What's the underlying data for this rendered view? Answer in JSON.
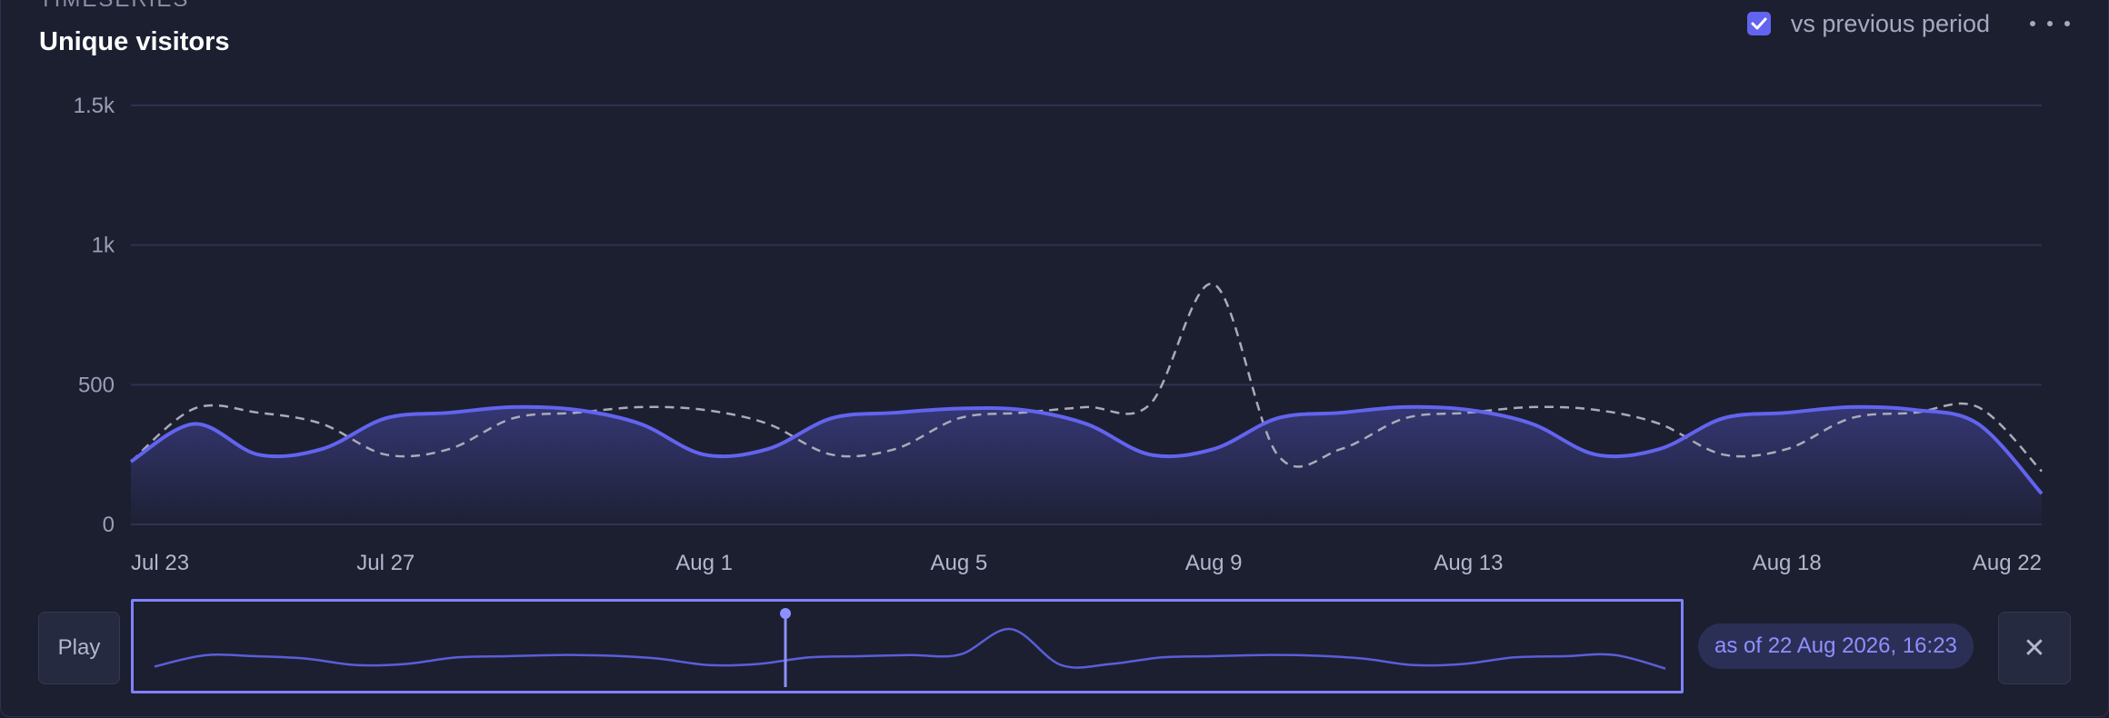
{
  "header": {
    "eyebrow": "TIMESERIES",
    "title": "Unique visitors",
    "compare_label": "vs previous period",
    "compare_checked": true
  },
  "controls": {
    "play_label": "Play",
    "as_of_label": "as of 22 Aug 2026, 16:23",
    "close_label": "✕"
  },
  "colors": {
    "accent": "#6264ef",
    "background": "#1c1f30",
    "previous_period": "#a9abb8",
    "grid": "#2e3250"
  },
  "chart_data": {
    "type": "area",
    "title": "Unique visitors",
    "ylim": [
      0,
      1500
    ],
    "y_ticks": [
      "0",
      "500",
      "1k",
      "1.5k"
    ],
    "y_tick_values": [
      0,
      500,
      1000,
      1500
    ],
    "x_range": [
      "2026-07-23",
      "2026-08-22"
    ],
    "x_ticks": [
      "Jul 23",
      "Jul 27",
      "Aug 1",
      "Aug 5",
      "Aug 9",
      "Aug 13",
      "Aug 18",
      "Aug 22"
    ],
    "x_tick_dates": [
      "2026-07-23",
      "2026-07-27",
      "2026-08-01",
      "2026-08-05",
      "2026-08-09",
      "2026-08-13",
      "2026-08-18",
      "2026-08-22"
    ],
    "grid": true,
    "series": [
      {
        "style": "solid-area",
        "color": "#6264ef",
        "x": [
          "2026-07-23",
          "2026-07-24",
          "2026-07-25",
          "2026-07-26",
          "2026-07-27",
          "2026-07-28",
          "2026-07-29",
          "2026-07-30",
          "2026-07-31",
          "2026-08-01",
          "2026-08-02",
          "2026-08-03",
          "2026-08-04",
          "2026-08-05",
          "2026-08-06",
          "2026-08-07",
          "2026-08-08",
          "2026-08-09",
          "2026-08-10",
          "2026-08-11",
          "2026-08-12",
          "2026-08-13",
          "2026-08-14",
          "2026-08-15",
          "2026-08-16",
          "2026-08-17",
          "2026-08-18",
          "2026-08-19",
          "2026-08-20",
          "2026-08-21",
          "2026-08-22"
        ],
        "values": [
          225,
          360,
          250,
          270,
          380,
          400,
          420,
          410,
          360,
          250,
          270,
          380,
          400,
          415,
          410,
          360,
          250,
          270,
          380,
          400,
          420,
          410,
          360,
          250,
          270,
          380,
          400,
          420,
          410,
          360,
          110
        ]
      },
      {
        "style": "dashed",
        "color": "#a9abb8",
        "x": [
          "2026-07-23",
          "2026-07-24",
          "2026-07-25",
          "2026-07-26",
          "2026-07-27",
          "2026-07-28",
          "2026-07-29",
          "2026-07-30",
          "2026-07-31",
          "2026-08-01",
          "2026-08-02",
          "2026-08-03",
          "2026-08-04",
          "2026-08-05",
          "2026-08-06",
          "2026-08-07",
          "2026-08-08",
          "2026-08-09",
          "2026-08-10",
          "2026-08-11",
          "2026-08-12",
          "2026-08-13",
          "2026-08-14",
          "2026-08-15",
          "2026-08-16",
          "2026-08-17",
          "2026-08-18",
          "2026-08-19",
          "2026-08-20",
          "2026-08-21",
          "2026-08-22"
        ],
        "values": [
          225,
          415,
          400,
          360,
          250,
          270,
          380,
          400,
          420,
          410,
          360,
          250,
          270,
          380,
          400,
          420,
          430,
          860,
          250,
          270,
          380,
          400,
          420,
          410,
          360,
          250,
          270,
          380,
          400,
          420,
          190
        ]
      }
    ]
  }
}
